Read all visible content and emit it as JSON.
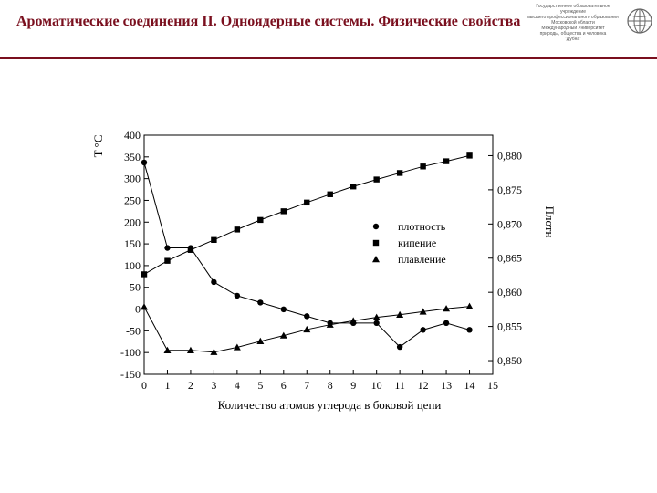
{
  "header": {
    "title": "Ароматические соединения II. Одноядерные системы. Физические свойства",
    "logo_lines": [
      "Государственное образовательное учреждение",
      "высшего профессионального образования",
      "Московской области",
      "Международный Университет",
      "природы, общества и человека",
      "\"Дубна\""
    ]
  },
  "chart_data": {
    "type": "line",
    "xlabel": "Количество атомов углерода в боковой цепи",
    "ylabel_left": "T °C",
    "ylabel_right": "Плотн",
    "x_ticks": [
      0,
      1,
      2,
      3,
      4,
      5,
      6,
      7,
      8,
      9,
      10,
      11,
      12,
      13,
      14,
      15
    ],
    "xlim": [
      0,
      15
    ],
    "ylim_left": [
      -150,
      400
    ],
    "y_ticks_left": [
      400,
      350,
      300,
      250,
      200,
      150,
      100,
      50,
      0,
      -50,
      -100,
      -150
    ],
    "ylim_right": [
      0.848,
      0.883
    ],
    "y_ticks_right": [
      "0,880",
      "0,875",
      "0,870",
      "0,865",
      "0,860",
      "0,855",
      "0,850"
    ],
    "y_ticks_right_values": [
      0.88,
      0.875,
      0.87,
      0.865,
      0.86,
      0.855,
      0.85
    ],
    "legend_position": "right-middle",
    "series": [
      {
        "name": "плотность",
        "marker": "circle",
        "axis": "right",
        "x": [
          0,
          1,
          2,
          3,
          4,
          5,
          6,
          7,
          8,
          9,
          10,
          11,
          12,
          13,
          14
        ],
        "values": [
          0.879,
          0.8665,
          0.8665,
          0.8615,
          0.8595,
          0.8585,
          0.8575,
          0.8565,
          0.8555,
          0.8555,
          0.8555,
          0.852,
          0.8545,
          0.8555,
          0.8545
        ]
      },
      {
        "name": "кипение",
        "marker": "square",
        "axis": "left",
        "x": [
          0,
          1,
          2,
          3,
          4,
          5,
          6,
          7,
          8,
          9,
          10,
          11,
          12,
          13,
          14
        ],
        "values": [
          80,
          111,
          136,
          159,
          183,
          205,
          225,
          245,
          264,
          282,
          298,
          313,
          328,
          340,
          353
        ]
      },
      {
        "name": "плавление",
        "marker": "triangle",
        "axis": "left",
        "x": [
          0,
          1,
          2,
          3,
          4,
          5,
          6,
          7,
          8,
          9,
          10,
          11,
          12,
          13,
          14
        ],
        "values": [
          5,
          -95,
          -95,
          -99,
          -88,
          -74,
          -61,
          -47,
          -36,
          -27,
          -19,
          -13,
          -6,
          1,
          6
        ]
      }
    ]
  }
}
